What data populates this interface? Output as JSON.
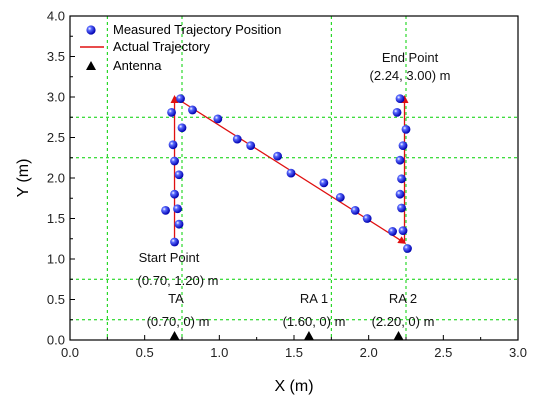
{
  "chart_data": {
    "type": "scatter",
    "xlabel": "X (m)",
    "ylabel": "Y (m)",
    "xlim": [
      0.0,
      3.0
    ],
    "ylim": [
      0.0,
      4.0
    ],
    "xticks": [
      "0.0",
      "0.5",
      "1.0",
      "1.5",
      "2.0",
      "2.5",
      "3.0"
    ],
    "yticks": [
      "0.0",
      "0.5",
      "1.0",
      "1.5",
      "2.0",
      "2.5",
      "3.0",
      "3.5",
      "4.0"
    ],
    "grid": {
      "style": "dashed",
      "color": "#00d000",
      "x": [
        0.25,
        0.75,
        1.75,
        2.25
      ],
      "y": [
        0.25,
        0.75,
        2.25,
        2.75
      ]
    },
    "legend": {
      "placement": "top-left",
      "entries": [
        {
          "label": "Measured Trajectory Position",
          "marker": "blue-sphere"
        },
        {
          "label": "Actual Trajectory",
          "marker": "red-line"
        },
        {
          "label": "Antenna",
          "marker": "black-triangle"
        }
      ]
    },
    "series": [
      {
        "name": "Measured Trajectory Position",
        "color": "#1a1aff",
        "points": [
          [
            0.7,
            1.21
          ],
          [
            0.73,
            1.43
          ],
          [
            0.64,
            1.6
          ],
          [
            0.72,
            1.62
          ],
          [
            0.7,
            1.8
          ],
          [
            0.73,
            2.04
          ],
          [
            0.7,
            2.21
          ],
          [
            0.69,
            2.41
          ],
          [
            0.75,
            2.62
          ],
          [
            0.68,
            2.81
          ],
          [
            0.74,
            2.98
          ],
          [
            0.82,
            2.84
          ],
          [
            0.99,
            2.73
          ],
          [
            1.12,
            2.48
          ],
          [
            1.21,
            2.4
          ],
          [
            1.39,
            2.27
          ],
          [
            1.48,
            2.06
          ],
          [
            1.7,
            1.94
          ],
          [
            1.81,
            1.76
          ],
          [
            1.91,
            1.6
          ],
          [
            1.99,
            1.5
          ],
          [
            2.16,
            1.34
          ],
          [
            2.23,
            1.35
          ],
          [
            2.26,
            1.13
          ],
          [
            2.22,
            1.63
          ],
          [
            2.21,
            1.8
          ],
          [
            2.22,
            1.99
          ],
          [
            2.21,
            2.22
          ],
          [
            2.23,
            2.4
          ],
          [
            2.25,
            2.6
          ],
          [
            2.19,
            2.81
          ],
          [
            2.21,
            2.98
          ]
        ]
      },
      {
        "name": "Actual Trajectory",
        "color": "#e01010",
        "points": [
          [
            0.7,
            1.2
          ],
          [
            0.7,
            3.0
          ],
          [
            2.24,
            1.2
          ],
          [
            2.24,
            3.0
          ]
        ]
      },
      {
        "name": "Antenna",
        "color": "#000000",
        "points": [
          [
            0.7,
            0.0
          ],
          [
            1.6,
            0.0
          ],
          [
            2.2,
            0.0
          ]
        ]
      }
    ],
    "annotations": [
      {
        "id": "end-point",
        "lines": [
          "End Point",
          "(2.24, 3.00) m"
        ]
      },
      {
        "id": "start-point",
        "lines": [
          "Start Point",
          "(0.70, 1.20) m"
        ]
      },
      {
        "id": "ta",
        "lines": [
          "TA",
          "(0.70, 0) m"
        ]
      },
      {
        "id": "ra1",
        "lines": [
          "RA 1",
          "(1.60, 0) m"
        ]
      },
      {
        "id": "ra2",
        "lines": [
          "RA 2",
          "(2.20, 0) m"
        ]
      }
    ]
  }
}
